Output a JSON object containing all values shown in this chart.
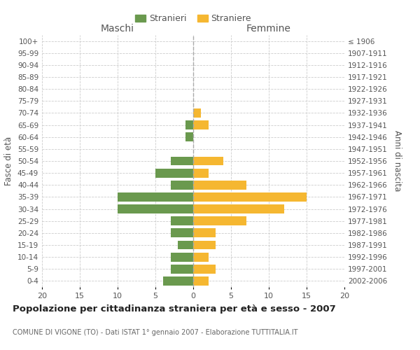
{
  "age_groups": [
    "0-4",
    "5-9",
    "10-14",
    "15-19",
    "20-24",
    "25-29",
    "30-34",
    "35-39",
    "40-44",
    "45-49",
    "50-54",
    "55-59",
    "60-64",
    "65-69",
    "70-74",
    "75-79",
    "80-84",
    "85-89",
    "90-94",
    "95-99",
    "100+"
  ],
  "birth_years": [
    "2002-2006",
    "1997-2001",
    "1992-1996",
    "1987-1991",
    "1982-1986",
    "1977-1981",
    "1972-1976",
    "1967-1971",
    "1962-1966",
    "1957-1961",
    "1952-1956",
    "1947-1951",
    "1942-1946",
    "1937-1941",
    "1932-1936",
    "1927-1931",
    "1922-1926",
    "1917-1921",
    "1912-1916",
    "1907-1911",
    "≤ 1906"
  ],
  "males": [
    4,
    3,
    3,
    2,
    3,
    3,
    10,
    10,
    3,
    5,
    3,
    0,
    1,
    1,
    0,
    0,
    0,
    0,
    0,
    0,
    0
  ],
  "females": [
    2,
    3,
    2,
    3,
    3,
    7,
    12,
    15,
    7,
    2,
    4,
    0,
    0,
    2,
    1,
    0,
    0,
    0,
    0,
    0,
    0
  ],
  "male_color": "#6a994e",
  "female_color": "#f5b731",
  "male_label": "Stranieri",
  "female_label": "Straniere",
  "title": "Popolazione per cittadinanza straniera per età e sesso - 2007",
  "subtitle": "COMUNE DI VIGONE (TO) - Dati ISTAT 1° gennaio 2007 - Elaborazione TUTTITALIA.IT",
  "xlabel_left": "Maschi",
  "xlabel_right": "Femmine",
  "ylabel_left": "Fasce di età",
  "ylabel_right": "Anni di nascita",
  "xlim": 20,
  "background_color": "#ffffff",
  "grid_color": "#cccccc"
}
